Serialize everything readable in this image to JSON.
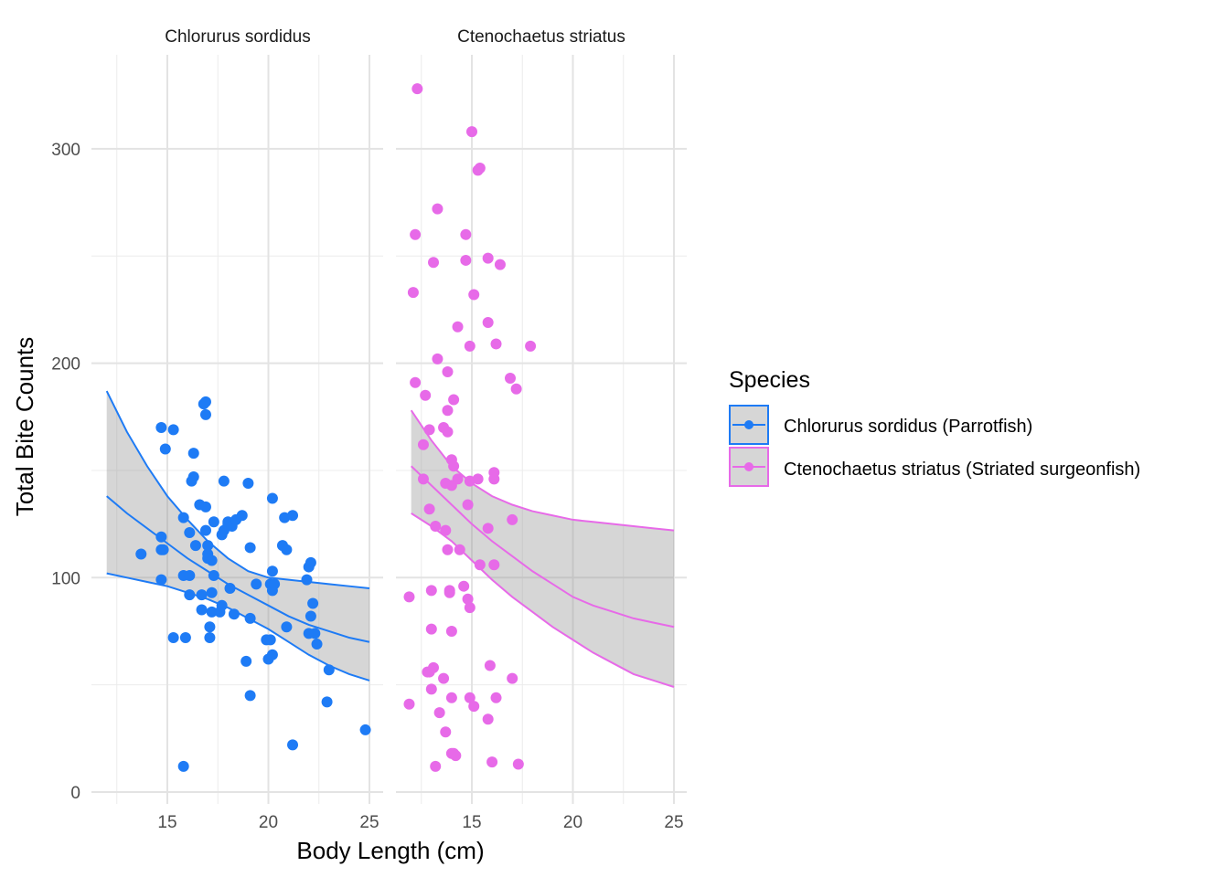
{
  "chart_data": {
    "type": "scatter",
    "title": "",
    "xlabel": "Body Length (cm)",
    "ylabel": "Total Bite Counts",
    "xlim": [
      11.5,
      25.7
    ],
    "ylim": [
      -5,
      345
    ],
    "xticks": [
      15,
      20,
      25
    ],
    "xticks_minor": [
      12.5,
      17.5,
      22.5
    ],
    "yticks": [
      0,
      100,
      200,
      300
    ],
    "yticks_minor": [
      50,
      150,
      250
    ],
    "grid": true,
    "legend": {
      "title": "Species",
      "position": "right",
      "entries": [
        {
          "label": "Chlorurus sordidus (Parrotfish)",
          "color": "#1E7BF5"
        },
        {
          "label": "Ctenochaetus striatus (Striated surgeonfish)",
          "color": "#E76AE8"
        }
      ]
    },
    "panels": [
      {
        "strip": "Chlorurus sordidus",
        "color": "#1E7BF5",
        "fit": {
          "x": [
            12,
            13,
            14,
            15,
            16,
            17,
            18,
            19,
            20,
            21,
            22,
            23,
            24,
            25
          ],
          "mean": [
            138,
            130,
            123,
            116,
            109,
            103,
            97,
            92,
            87,
            82,
            78,
            75,
            72,
            70
          ],
          "lower": [
            102,
            100,
            98,
            96,
            93,
            90,
            86,
            81,
            76,
            70,
            64,
            59,
            55,
            52
          ],
          "upper": [
            187,
            168,
            152,
            138,
            127,
            117,
            109,
            103,
            100,
            99,
            98,
            97,
            96,
            95
          ]
        },
        "points": [
          [
            13.7,
            111
          ],
          [
            14.7,
            170
          ],
          [
            14.9,
            160
          ],
          [
            14.7,
            119
          ],
          [
            14.7,
            113
          ],
          [
            14.8,
            113
          ],
          [
            14.7,
            99
          ],
          [
            15.3,
            169
          ],
          [
            15.3,
            72
          ],
          [
            15.8,
            128
          ],
          [
            15.8,
            101
          ],
          [
            15.9,
            72
          ],
          [
            15.8,
            12
          ],
          [
            16.1,
            121
          ],
          [
            16.1,
            101
          ],
          [
            16.1,
            92
          ],
          [
            16.2,
            145
          ],
          [
            16.3,
            147
          ],
          [
            16.3,
            158
          ],
          [
            16.4,
            115
          ],
          [
            16.6,
            134
          ],
          [
            16.7,
            92
          ],
          [
            16.7,
            85
          ],
          [
            16.8,
            181
          ],
          [
            16.9,
            182
          ],
          [
            16.9,
            176
          ],
          [
            16.9,
            122
          ],
          [
            16.9,
            133
          ],
          [
            17.0,
            111
          ],
          [
            17.0,
            115
          ],
          [
            17.0,
            109
          ],
          [
            17.1,
            77
          ],
          [
            17.1,
            72
          ],
          [
            17.2,
            108
          ],
          [
            17.2,
            84
          ],
          [
            17.2,
            93
          ],
          [
            17.3,
            126
          ],
          [
            17.3,
            101
          ],
          [
            17.6,
            84
          ],
          [
            17.7,
            87
          ],
          [
            17.7,
            120
          ],
          [
            17.8,
            122
          ],
          [
            17.8,
            145
          ],
          [
            18.0,
            125
          ],
          [
            18.0,
            126
          ],
          [
            18.1,
            95
          ],
          [
            18.2,
            124
          ],
          [
            18.3,
            83
          ],
          [
            18.4,
            127
          ],
          [
            18.7,
            129
          ],
          [
            18.9,
            61
          ],
          [
            19.0,
            144
          ],
          [
            19.1,
            45
          ],
          [
            19.1,
            114
          ],
          [
            19.1,
            81
          ],
          [
            19.4,
            97
          ],
          [
            19.9,
            71
          ],
          [
            20.0,
            62
          ],
          [
            20.1,
            71
          ],
          [
            20.1,
            97
          ],
          [
            20.2,
            64
          ],
          [
            20.2,
            94
          ],
          [
            20.2,
            137
          ],
          [
            20.2,
            103
          ],
          [
            20.3,
            97
          ],
          [
            20.7,
            115
          ],
          [
            20.8,
            128
          ],
          [
            20.9,
            77
          ],
          [
            20.9,
            113
          ],
          [
            21.2,
            22
          ],
          [
            21.2,
            129
          ],
          [
            21.9,
            99
          ],
          [
            22.0,
            105
          ],
          [
            22.0,
            74
          ],
          [
            22.1,
            82
          ],
          [
            22.1,
            107
          ],
          [
            22.2,
            88
          ],
          [
            22.3,
            74
          ],
          [
            22.4,
            69
          ],
          [
            22.9,
            42
          ],
          [
            23.0,
            57
          ],
          [
            24.8,
            29
          ]
        ]
      },
      {
        "strip": "Ctenochaetus striatus",
        "color": "#E76AE8",
        "fit": {
          "x": [
            12,
            13,
            14,
            15,
            16,
            17,
            18,
            19,
            20,
            21,
            22,
            23,
            24,
            25
          ],
          "mean": [
            152,
            143,
            134,
            125,
            117,
            110,
            103,
            97,
            91,
            87,
            84,
            81,
            79,
            77
          ],
          "lower": [
            130,
            124,
            117,
            108,
            99,
            91,
            84,
            77,
            71,
            65,
            60,
            55,
            52,
            49
          ],
          "upper": [
            178,
            164,
            152,
            144,
            138,
            134,
            131,
            129,
            127,
            126,
            125,
            124,
            123,
            122
          ]
        },
        "points": [
          [
            11.9,
            91
          ],
          [
            11.9,
            41
          ],
          [
            12.1,
            233
          ],
          [
            12.2,
            260
          ],
          [
            12.2,
            191
          ],
          [
            12.3,
            328
          ],
          [
            12.6,
            162
          ],
          [
            12.6,
            146
          ],
          [
            12.7,
            185
          ],
          [
            12.8,
            56
          ],
          [
            12.9,
            169
          ],
          [
            12.9,
            132
          ],
          [
            12.9,
            56
          ],
          [
            13.0,
            94
          ],
          [
            13.0,
            76
          ],
          [
            13.0,
            48
          ],
          [
            13.1,
            247
          ],
          [
            13.1,
            58
          ],
          [
            13.2,
            124
          ],
          [
            13.2,
            12
          ],
          [
            13.3,
            272
          ],
          [
            13.3,
            202
          ],
          [
            13.4,
            37
          ],
          [
            13.6,
            53
          ],
          [
            13.6,
            170
          ],
          [
            13.7,
            144
          ],
          [
            13.7,
            122
          ],
          [
            13.7,
            28
          ],
          [
            13.8,
            196
          ],
          [
            13.8,
            178
          ],
          [
            13.8,
            168
          ],
          [
            13.8,
            113
          ],
          [
            13.9,
            93
          ],
          [
            13.9,
            94
          ],
          [
            14.0,
            18
          ],
          [
            14.0,
            155
          ],
          [
            14.0,
            143
          ],
          [
            14.0,
            75
          ],
          [
            14.0,
            44
          ],
          [
            14.1,
            183
          ],
          [
            14.1,
            152
          ],
          [
            14.1,
            18
          ],
          [
            14.2,
            17
          ],
          [
            14.3,
            217
          ],
          [
            14.3,
            146
          ],
          [
            14.4,
            113
          ],
          [
            14.6,
            96
          ],
          [
            14.7,
            260
          ],
          [
            14.7,
            248
          ],
          [
            14.8,
            134
          ],
          [
            14.8,
            90
          ],
          [
            14.9,
            208
          ],
          [
            14.9,
            145
          ],
          [
            14.9,
            86
          ],
          [
            14.9,
            44
          ],
          [
            15.0,
            308
          ],
          [
            15.1,
            232
          ],
          [
            15.1,
            40
          ],
          [
            15.3,
            290
          ],
          [
            15.4,
            291
          ],
          [
            15.4,
            106
          ],
          [
            15.3,
            146
          ],
          [
            15.8,
            249
          ],
          [
            15.8,
            219
          ],
          [
            15.8,
            123
          ],
          [
            15.8,
            34
          ],
          [
            15.9,
            59
          ],
          [
            16.0,
            14
          ],
          [
            16.1,
            149
          ],
          [
            16.1,
            106
          ],
          [
            16.1,
            146
          ],
          [
            16.2,
            209
          ],
          [
            16.2,
            44
          ],
          [
            16.4,
            246
          ],
          [
            16.9,
            193
          ],
          [
            17.0,
            127
          ],
          [
            17.0,
            53
          ],
          [
            17.2,
            188
          ],
          [
            17.3,
            13
          ],
          [
            17.9,
            208
          ]
        ]
      }
    ]
  }
}
